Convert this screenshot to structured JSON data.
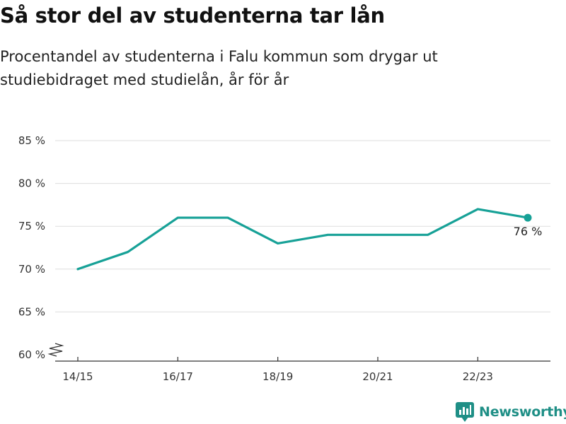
{
  "header": {
    "title": "Så stor del av studenterna tar lån",
    "subtitle": "Procentandel av studenterna i Falu kommun som drygar ut studiebidraget med studielån, år för år"
  },
  "brand": {
    "name": "Newsworthy",
    "color": "#1f8f86"
  },
  "colors": {
    "line": "#17a197",
    "grid": "#dddddd",
    "axis": "#333333"
  },
  "chart_data": {
    "type": "line",
    "title": "Så stor del av studenterna tar lån",
    "subtitle": "Procentandel av studenterna i Falu kommun som drygar ut studiebidraget med studielån, år för år",
    "x": [
      "14/15",
      "15/16",
      "16/17",
      "17/18",
      "18/19",
      "19/20",
      "20/21",
      "21/22",
      "22/23",
      "23/24"
    ],
    "x_tick_labels": [
      "14/15",
      "16/17",
      "18/19",
      "20/21",
      "22/23"
    ],
    "series": [
      {
        "values": [
          70,
          72,
          76,
          76,
          73,
          74,
          74,
          74,
          77,
          76
        ]
      }
    ],
    "ylim": [
      60,
      85
    ],
    "y_ticks": [
      60,
      65,
      70,
      75,
      80,
      85
    ],
    "y_tick_labels": [
      "60 %",
      "65 %",
      "70 %",
      "75 %",
      "80 %",
      "85 %"
    ],
    "y_axis_break": true,
    "grid": "horizontal",
    "end_label": "76 %"
  }
}
